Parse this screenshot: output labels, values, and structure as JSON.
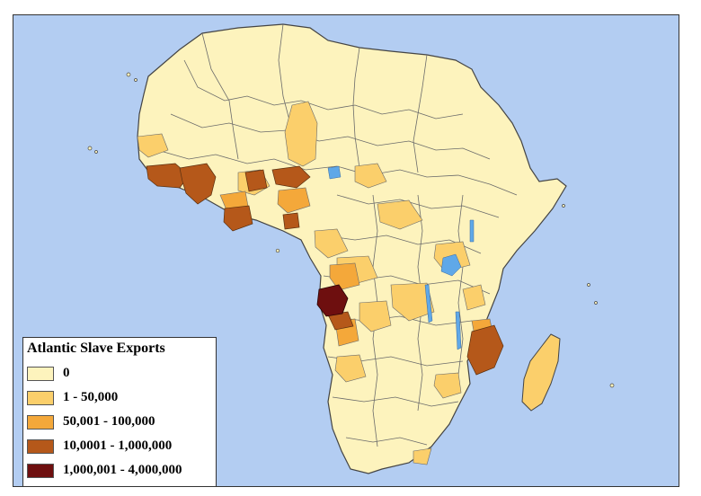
{
  "legend": {
    "title": "Atlantic Slave Exports",
    "classes": [
      {
        "label": "0",
        "color": "#fdf3bd"
      },
      {
        "label": "1 - 50,000",
        "color": "#fbcf6b"
      },
      {
        "label": "50,001 - 100,000",
        "color": "#f4a83a"
      },
      {
        "label": "10,0001 - 1,000,000",
        "color": "#b5581a"
      },
      {
        "label": "1,000,001 - 4,000,000",
        "color": "#6e0f0f"
      }
    ]
  },
  "colors": {
    "ocean": "#b3cdf2",
    "land": "#fdf3bd",
    "border": "#5a5a5a",
    "lake": "#5fa8e8"
  }
}
